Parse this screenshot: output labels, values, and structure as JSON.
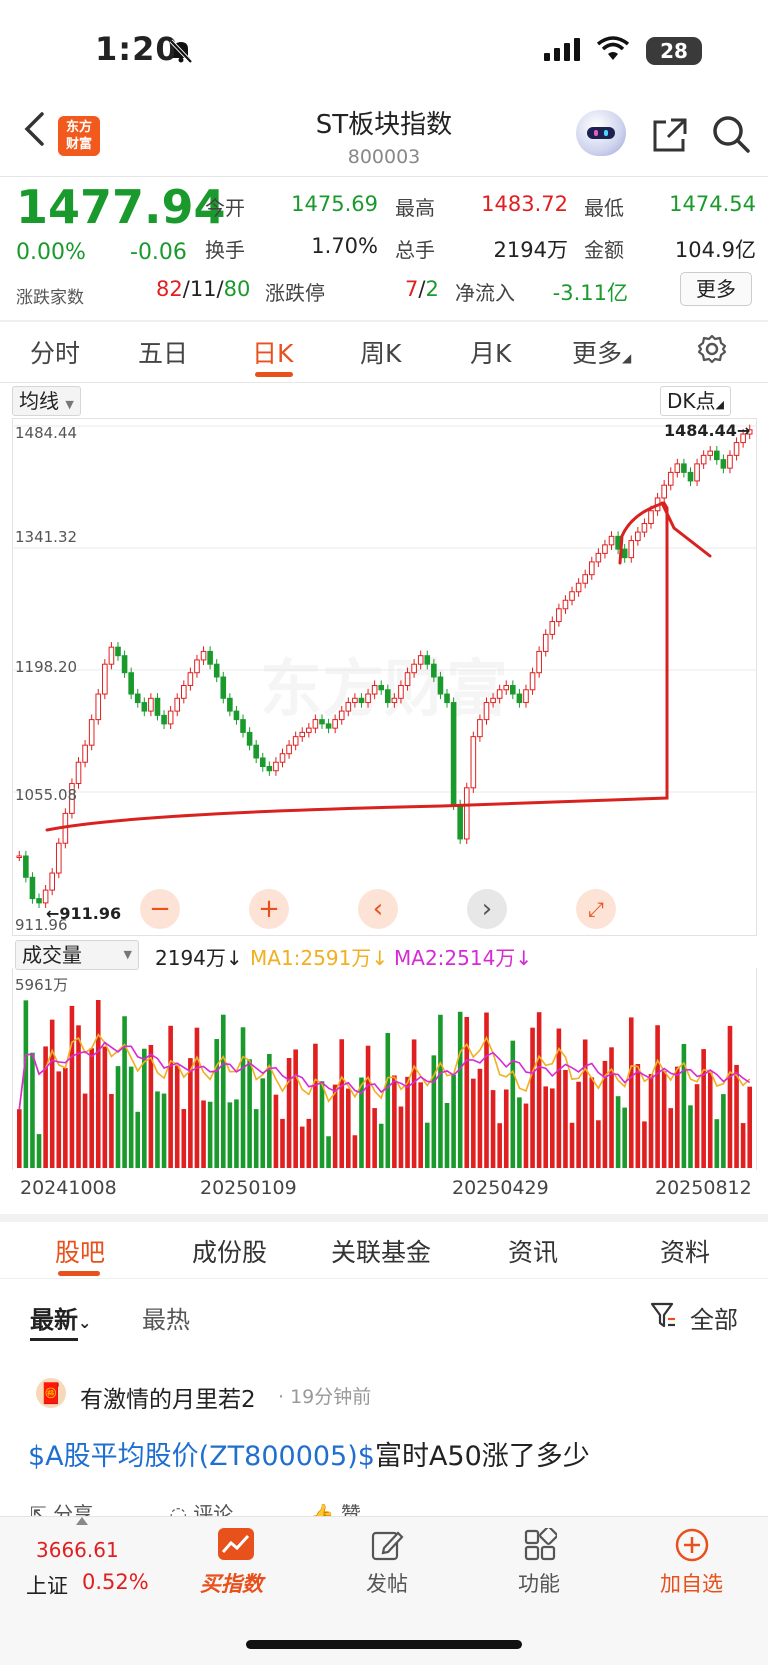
{
  "status": {
    "time": "1:20",
    "battery": "28"
  },
  "header": {
    "back": "‹",
    "logo": "东方财富",
    "title": "ST板块指数",
    "code": "800003"
  },
  "quote": {
    "price": "1477.94",
    "pct": "0.00%",
    "change": "-0.06",
    "open_label": "今开",
    "open": "1475.69",
    "high_label": "最高",
    "high": "1483.72",
    "low_label": "最低",
    "low": "1474.54",
    "turnover_label": "换手",
    "turnover": "1.70%",
    "volume_label": "总手",
    "volume": "2194万",
    "amount_label": "金额",
    "amount": "104.9亿",
    "breadth_label": "涨跌家数",
    "breadth_up": "82",
    "breadth_flat": "11",
    "breadth_down": "80",
    "limit_label": "涨跌停",
    "limit_up": "7",
    "limit_down": "2",
    "netflow_label": "净流入",
    "netflow": "-3.11亿",
    "more": "更多"
  },
  "tabs": [
    "分时",
    "五日",
    "日K",
    "周K",
    "月K",
    "更多"
  ],
  "active_tab": "日K",
  "chart": {
    "ma_select": "均线",
    "dk_button": "DK点",
    "watermark": "东方财富",
    "last_label": "1484.44"
  },
  "chart_data": {
    "type": "candlestick",
    "y_ticks": [
      "1484.44",
      "1341.32",
      "1198.20",
      "1055.08",
      "911.96"
    ],
    "ylim": [
      911.96,
      1484.44
    ],
    "low_label": "911.96",
    "closes": [
      980,
      955,
      930,
      925,
      940,
      960,
      995,
      1030,
      1065,
      1090,
      1110,
      1140,
      1170,
      1205,
      1225,
      1215,
      1195,
      1170,
      1160,
      1150,
      1165,
      1145,
      1135,
      1150,
      1165,
      1180,
      1195,
      1210,
      1220,
      1205,
      1190,
      1165,
      1150,
      1140,
      1125,
      1110,
      1095,
      1085,
      1080,
      1090,
      1100,
      1110,
      1120,
      1125,
      1130,
      1140,
      1135,
      1130,
      1140,
      1150,
      1160,
      1165,
      1160,
      1170,
      1180,
      1175,
      1160,
      1165,
      1180,
      1195,
      1205,
      1215,
      1205,
      1190,
      1170,
      1160,
      1040,
      1000,
      1060,
      1120,
      1140,
      1160,
      1165,
      1175,
      1180,
      1170,
      1160,
      1175,
      1195,
      1220,
      1240,
      1255,
      1270,
      1280,
      1290,
      1300,
      1310,
      1325,
      1335,
      1345,
      1355,
      1340,
      1330,
      1350,
      1360,
      1370,
      1385,
      1400,
      1415,
      1430,
      1440,
      1430,
      1420,
      1440,
      1450,
      1455,
      1445,
      1435,
      1450,
      1465,
      1475,
      1480
    ],
    "volume": {
      "label": "成交量",
      "value": "2194万",
      "ma1": "MA1:2591万",
      "ma2": "MA2:2514万",
      "max_label": "5961万",
      "ma1_color": "#f0b020",
      "ma2_color": "#d62ad6"
    },
    "x_dates": [
      "20241008",
      "20250109",
      "20250429",
      "20250812"
    ]
  },
  "controls": [
    "zoom-out",
    "zoom-in",
    "left",
    "right",
    "fullscreen"
  ],
  "section_tabs": [
    "股吧",
    "成份股",
    "关联基金",
    "资讯",
    "资料"
  ],
  "feed": {
    "sort_new": "最新",
    "sort_hot": "最热",
    "filter": "全部",
    "author": "有激情的月里若2",
    "time": "19分钟前",
    "post_link": "$A股平均股价(ZT800005)$",
    "post_text": "富时A50涨了多少",
    "share": "分享",
    "comment": "评论",
    "like": "赞"
  },
  "bottom": {
    "index_value": "3666.61",
    "index_name": "上证",
    "index_pct": "0.52%",
    "buy": "买指数",
    "post": "发帖",
    "func": "功能",
    "add": "加自选"
  },
  "colors": {
    "accent": "#e8501c",
    "up": "#e02020",
    "down": "#1a9a2c"
  }
}
